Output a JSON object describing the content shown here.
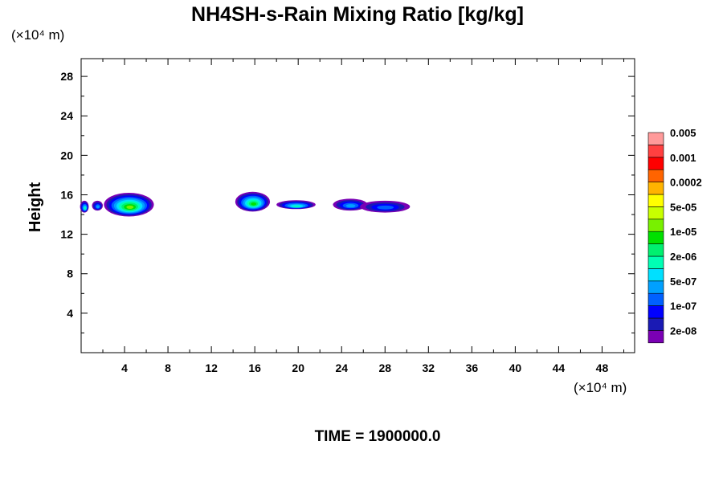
{
  "chart_data": {
    "type": "contour",
    "title": "NH4SH-s-Rain Mixing Ratio [kg/kg]",
    "ylabel": "Height",
    "y_unit_label": "(×10⁴ m)",
    "x_unit_label": "(×10⁴ m)",
    "time_label": "TIME = 1900000.0",
    "xlim": [
      0,
      51
    ],
    "ylim": [
      0,
      29.8
    ],
    "x_ticks": [
      4,
      8,
      12,
      16,
      20,
      24,
      28,
      32,
      36,
      40,
      44,
      48
    ],
    "y_ticks": [
      4,
      8,
      12,
      16,
      20,
      24,
      28
    ],
    "colorbar": {
      "colors": [
        "#7a00b4",
        "#1a1ab4",
        "#0000ff",
        "#0060ff",
        "#00a0ff",
        "#00e0ff",
        "#00ffb4",
        "#00f070",
        "#00e000",
        "#78f000",
        "#c8ff00",
        "#ffff00",
        "#ffb400",
        "#ff6400",
        "#ff0000",
        "#ff4040",
        "#ff9a9a"
      ],
      "labels": [
        "2e-08",
        "1e-07",
        "5e-07",
        "2e-06",
        "1e-05",
        "5e-05",
        "0.0002",
        "0.001",
        "0.005"
      ]
    },
    "features": [
      {
        "x": 0.3,
        "y": 14.8,
        "rx": 0.4,
        "ry": 0.6,
        "level": 6
      },
      {
        "x": 1.5,
        "y": 14.9,
        "rx": 0.5,
        "ry": 0.5,
        "level": 4
      },
      {
        "x": 4.4,
        "y": 15.0,
        "rx": 2.3,
        "ry": 1.2,
        "level": 9
      },
      {
        "x": 15.8,
        "y": 15.3,
        "rx": 1.6,
        "ry": 1.0,
        "level": 8
      },
      {
        "x": 19.8,
        "y": 15.0,
        "rx": 1.8,
        "ry": 0.45,
        "level": 6
      },
      {
        "x": 24.8,
        "y": 15.0,
        "rx": 1.6,
        "ry": 0.6,
        "level": 4
      },
      {
        "x": 28.0,
        "y": 14.8,
        "rx": 2.3,
        "ry": 0.6,
        "level": 3
      }
    ]
  }
}
